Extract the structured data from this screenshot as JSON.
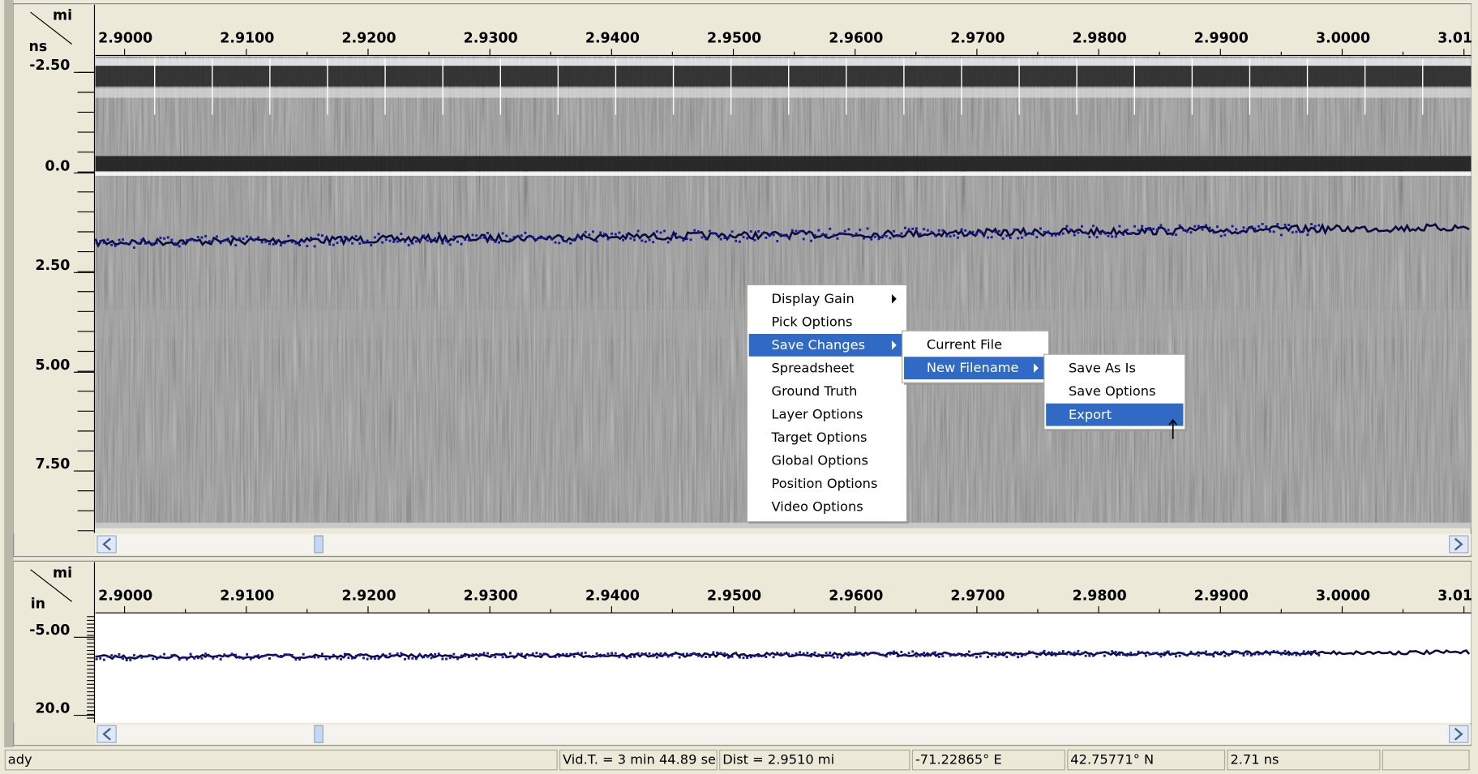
{
  "top_panel": {
    "x_unit": "mi",
    "y_unit": "ns",
    "x_labels": [
      "2.9000",
      "2.9100",
      "2.9200",
      "2.9300",
      "2.9400",
      "2.9500",
      "2.9600",
      "2.9700",
      "2.9800",
      "2.9900",
      "3.0000",
      "3.01"
    ],
    "y_labels": [
      "-2.50",
      "0.0",
      "2.50",
      "5.00",
      "7.50"
    ]
  },
  "bottom_panel": {
    "x_unit": "mi",
    "y_unit": "in",
    "x_labels": [
      "2.9000",
      "2.9100",
      "2.9200",
      "2.9300",
      "2.9400",
      "2.9500",
      "2.9600",
      "2.9700",
      "2.9800",
      "2.9900",
      "3.0000",
      "3.01"
    ],
    "y_labels": [
      "-5.00",
      "20.0"
    ]
  },
  "context_menu": {
    "items": [
      "Display Gain",
      "Pick Options",
      "Save Changes",
      "Spreadsheet",
      "Ground Truth",
      "Layer Options",
      "Target Options",
      "Global Options",
      "Position Options",
      "Video Options"
    ]
  },
  "save_submenu": {
    "items": [
      "Current File",
      "New Filename"
    ]
  },
  "filename_submenu": {
    "items": [
      "Save As Is",
      "Save Options",
      "Export"
    ]
  },
  "status_bar": [
    "ady",
    "Vid.T. = 3 min 44.89 se",
    "Dist = 2.9510 mi",
    "-71.22865° E",
    "42.75771° N",
    "2.71 ns"
  ]
}
